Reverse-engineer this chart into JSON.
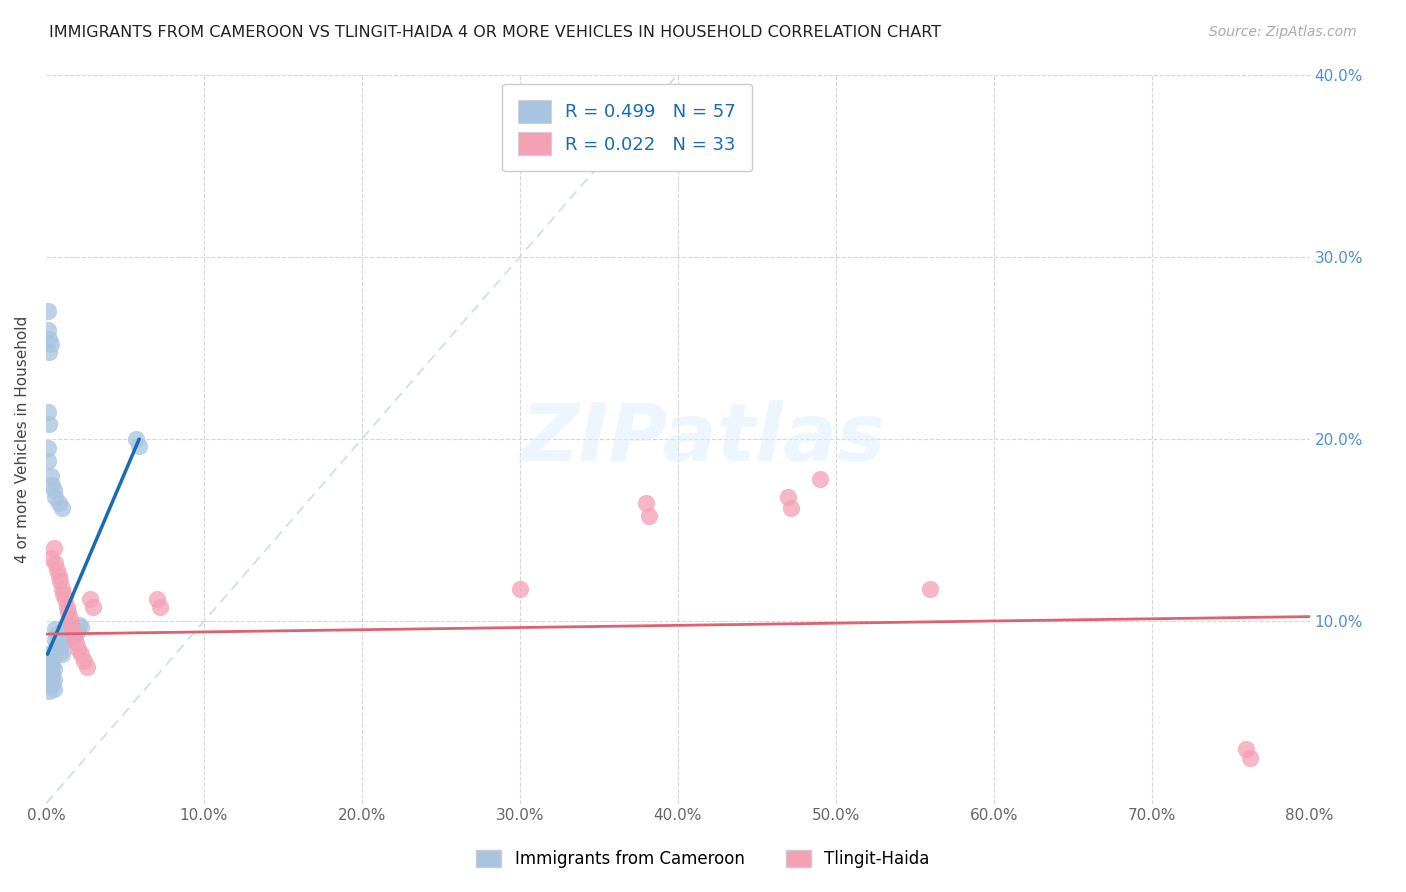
{
  "title": "IMMIGRANTS FROM CAMEROON VS TLINGIT-HAIDA 4 OR MORE VEHICLES IN HOUSEHOLD CORRELATION CHART",
  "source": "Source: ZipAtlas.com",
  "ylabel": "4 or more Vehicles in Household",
  "legend_label1": "Immigrants from Cameroon",
  "legend_label2": "Tlingit-Haida",
  "R1": 0.499,
  "N1": 57,
  "R2": 0.022,
  "N2": 33,
  "color1": "#a8c4e0",
  "color2": "#f4a0b5",
  "trend1_color": "#1a6bb5",
  "trend2_color": "#e06070",
  "diag_color": "#c8d8e8",
  "xlim": [
    0,
    0.8
  ],
  "ylim": [
    0,
    0.4
  ],
  "xtick_vals": [
    0.0,
    0.1,
    0.2,
    0.3,
    0.4,
    0.5,
    0.6,
    0.7,
    0.8
  ],
  "ytick_vals": [
    0.1,
    0.2,
    0.3,
    0.4
  ],
  "blue_dots": [
    [
      0.001,
      0.082
    ],
    [
      0.001,
      0.075
    ],
    [
      0.001,
      0.07
    ],
    [
      0.002,
      0.08
    ],
    [
      0.002,
      0.073
    ],
    [
      0.002,
      0.067
    ],
    [
      0.002,
      0.062
    ],
    [
      0.003,
      0.078
    ],
    [
      0.003,
      0.072
    ],
    [
      0.003,
      0.068
    ],
    [
      0.004,
      0.076
    ],
    [
      0.004,
      0.07
    ],
    [
      0.004,
      0.065
    ],
    [
      0.005,
      0.074
    ],
    [
      0.005,
      0.068
    ],
    [
      0.005,
      0.063
    ],
    [
      0.006,
      0.096
    ],
    [
      0.006,
      0.09
    ],
    [
      0.006,
      0.085
    ],
    [
      0.007,
      0.093
    ],
    [
      0.007,
      0.087
    ],
    [
      0.008,
      0.091
    ],
    [
      0.008,
      0.086
    ],
    [
      0.009,
      0.089
    ],
    [
      0.009,
      0.083
    ],
    [
      0.01,
      0.088
    ],
    [
      0.01,
      0.082
    ],
    [
      0.011,
      0.095
    ],
    [
      0.011,
      0.09
    ],
    [
      0.012,
      0.093
    ],
    [
      0.013,
      0.09
    ],
    [
      0.014,
      0.095
    ],
    [
      0.015,
      0.098
    ],
    [
      0.016,
      0.094
    ],
    [
      0.017,
      0.092
    ],
    [
      0.018,
      0.096
    ],
    [
      0.019,
      0.093
    ],
    [
      0.02,
      0.095
    ],
    [
      0.021,
      0.098
    ],
    [
      0.022,
      0.097
    ],
    [
      0.001,
      0.27
    ],
    [
      0.001,
      0.26
    ],
    [
      0.002,
      0.255
    ],
    [
      0.002,
      0.248
    ],
    [
      0.003,
      0.252
    ],
    [
      0.001,
      0.215
    ],
    [
      0.002,
      0.208
    ],
    [
      0.057,
      0.2
    ],
    [
      0.059,
      0.196
    ],
    [
      0.001,
      0.195
    ],
    [
      0.001,
      0.188
    ],
    [
      0.003,
      0.18
    ],
    [
      0.004,
      0.175
    ],
    [
      0.005,
      0.172
    ],
    [
      0.006,
      0.168
    ],
    [
      0.008,
      0.165
    ],
    [
      0.01,
      0.162
    ]
  ],
  "pink_dots": [
    [
      0.003,
      0.135
    ],
    [
      0.005,
      0.14
    ],
    [
      0.006,
      0.132
    ],
    [
      0.007,
      0.128
    ],
    [
      0.008,
      0.125
    ],
    [
      0.009,
      0.122
    ],
    [
      0.01,
      0.118
    ],
    [
      0.011,
      0.115
    ],
    [
      0.012,
      0.112
    ],
    [
      0.013,
      0.108
    ],
    [
      0.014,
      0.105
    ],
    [
      0.015,
      0.102
    ],
    [
      0.016,
      0.098
    ],
    [
      0.017,
      0.095
    ],
    [
      0.018,
      0.092
    ],
    [
      0.019,
      0.088
    ],
    [
      0.02,
      0.085
    ],
    [
      0.022,
      0.082
    ],
    [
      0.024,
      0.078
    ],
    [
      0.026,
      0.075
    ],
    [
      0.028,
      0.112
    ],
    [
      0.03,
      0.108
    ],
    [
      0.07,
      0.112
    ],
    [
      0.072,
      0.108
    ],
    [
      0.3,
      0.118
    ],
    [
      0.38,
      0.165
    ],
    [
      0.382,
      0.158
    ],
    [
      0.47,
      0.168
    ],
    [
      0.472,
      0.162
    ],
    [
      0.49,
      0.178
    ],
    [
      0.56,
      0.118
    ],
    [
      0.76,
      0.03
    ],
    [
      0.762,
      0.025
    ]
  ],
  "trend1_x": [
    0.001,
    0.059
  ],
  "trend1_y_start": 0.082,
  "trend1_y_end": 0.2,
  "trend2_y_intercept": 0.093,
  "trend2_slope": 0.012
}
